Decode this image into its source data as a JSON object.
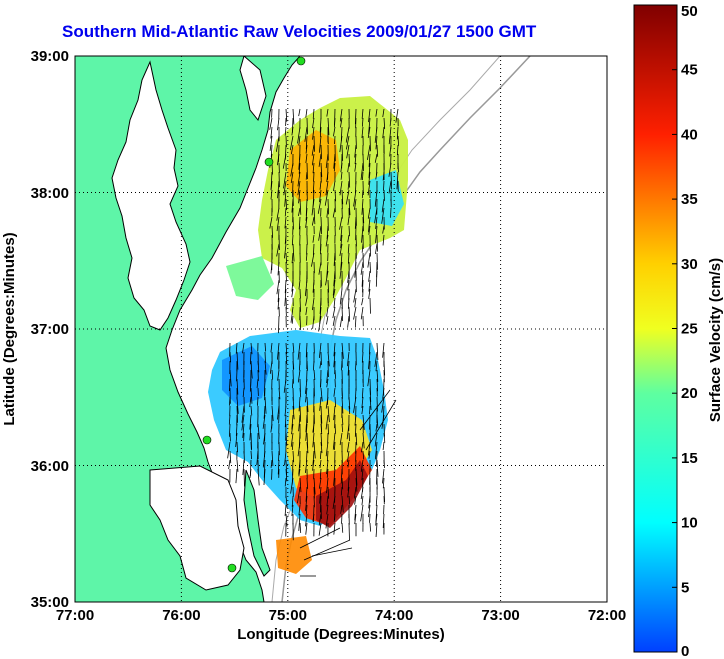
{
  "title": "Southern Mid-Atlantic Raw Velocities 2009/01/27 1500 GMT",
  "x_axis": {
    "label": "Longitude (Degrees:Minutes)",
    "ticks": [
      "77:00",
      "76:00",
      "75:00",
      "74:00",
      "73:00",
      "72:00"
    ]
  },
  "y_axis": {
    "label": "Latitude (Degrees:Minutes)",
    "ticks": [
      "39:00",
      "38:00",
      "37:00",
      "36:00",
      "35:00"
    ]
  },
  "colorbar": {
    "label": "Surface Velocity (cm/s)",
    "ticks": [
      "50",
      "45",
      "40",
      "35",
      "30",
      "25",
      "20",
      "15",
      "10",
      "5",
      "0"
    ],
    "min": 0,
    "max": 50
  },
  "colors": {
    "land": "#5ef5a8",
    "ocean": "#ffffff",
    "title": "#0000ee",
    "stations": "#22dd22"
  }
}
